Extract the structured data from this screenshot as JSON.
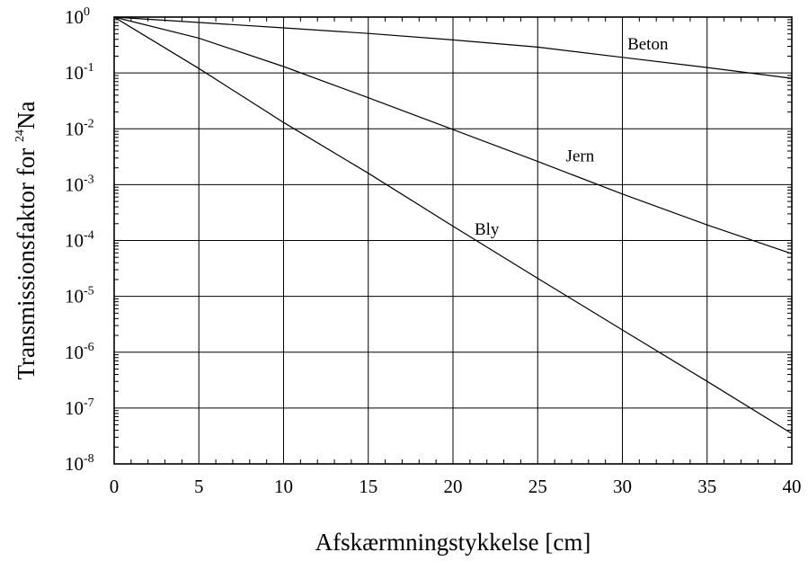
{
  "chart_data": {
    "type": "line",
    "title": "",
    "xlabel": "Afskærmningstykkelse [cm]",
    "ylabel": {
      "prefix": "Transmissionsfaktor for ",
      "superscript": "24",
      "suffix": "Na"
    },
    "x_scale": "linear",
    "y_scale": "log",
    "xlim": [
      0,
      40
    ],
    "ylim": [
      1e-08,
      1
    ],
    "x_ticks": [
      0,
      5,
      10,
      15,
      20,
      25,
      30,
      35,
      40
    ],
    "y_ticks": [
      {
        "base": "10",
        "exponent": "0",
        "value": 1
      },
      {
        "base": "10",
        "exponent": "-1",
        "value": 0.1
      },
      {
        "base": "10",
        "exponent": "-2",
        "value": 0.01
      },
      {
        "base": "10",
        "exponent": "-3",
        "value": 0.001
      },
      {
        "base": "10",
        "exponent": "-4",
        "value": 0.0001
      },
      {
        "base": "10",
        "exponent": "-5",
        "value": 1e-05
      },
      {
        "base": "10",
        "exponent": "-6",
        "value": 1e-06
      },
      {
        "base": "10",
        "exponent": "-7",
        "value": 1e-07
      },
      {
        "base": "10",
        "exponent": "-8",
        "value": 1e-08
      }
    ],
    "grid": true,
    "legend": "none",
    "series": [
      {
        "name": "Beton",
        "x": [
          0,
          5,
          10,
          15,
          20,
          25,
          30,
          35,
          40
        ],
        "y": [
          1.0,
          0.8,
          0.64,
          0.51,
          0.39,
          0.29,
          0.19,
          0.125,
          0.08
        ]
      },
      {
        "name": "Jern",
        "x": [
          0,
          5,
          10,
          15,
          20,
          25,
          30,
          35,
          40
        ],
        "y": [
          1.0,
          0.42,
          0.13,
          0.036,
          0.0097,
          0.0026,
          0.00068,
          0.00019,
          5.8e-05
        ]
      },
      {
        "name": "Bly",
        "x": [
          0,
          5,
          10,
          15,
          20,
          25,
          30,
          35,
          40
        ],
        "y": [
          1.0,
          0.12,
          0.013,
          0.0016,
          0.00018,
          2.1e-05,
          2.5e-06,
          3e-07,
          3.5e-08
        ]
      }
    ],
    "series_labels": [
      {
        "text": "Beton",
        "series": "Beton",
        "at_x": 31.5
      },
      {
        "text": "Jern",
        "series": "Jern",
        "at_x": 27.5
      },
      {
        "text": "Bly",
        "series": "Bly",
        "at_x": 22.0
      }
    ]
  }
}
